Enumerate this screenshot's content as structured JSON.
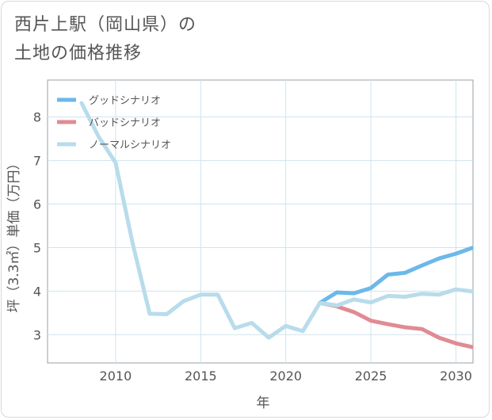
{
  "title_lines": [
    "西片上駅（岡山県）の",
    "土地の価格推移"
  ],
  "chart_data": {
    "type": "line",
    "xlabel": "年",
    "ylabel": "坪（3.3㎡）単価（万円）",
    "xlim": [
      2006,
      2031
    ],
    "ylim": [
      2.35,
      8.85
    ],
    "xticks": [
      2010,
      2015,
      2020,
      2025,
      2030
    ],
    "yticks": [
      3,
      4,
      5,
      6,
      7,
      8
    ],
    "grid": true,
    "legend_position": "top-left",
    "series": [
      {
        "name": "グッドシナリオ",
        "color": "#6cb8ea",
        "x": [
          2022,
          2023,
          2024,
          2025,
          2026,
          2027,
          2028,
          2029,
          2030,
          2031
        ],
        "y": [
          3.73,
          3.97,
          3.95,
          4.07,
          4.38,
          4.42,
          4.59,
          4.75,
          4.86,
          5.0
        ]
      },
      {
        "name": "バッドシナリオ",
        "color": "#e08b93",
        "x": [
          2022,
          2023,
          2024,
          2025,
          2026,
          2027,
          2028,
          2029,
          2030,
          2031
        ],
        "y": [
          3.73,
          3.65,
          3.52,
          3.32,
          3.24,
          3.17,
          3.13,
          2.93,
          2.8,
          2.71
        ]
      },
      {
        "name": "ノーマルシナリオ",
        "color": "#b8dceb",
        "x": [
          2008,
          2009,
          2010,
          2011,
          2012,
          2013,
          2014,
          2015,
          2016,
          2017,
          2018,
          2019,
          2020,
          2021,
          2022,
          2023,
          2024,
          2025,
          2026,
          2027,
          2028,
          2029,
          2030,
          2031
        ],
        "y": [
          8.32,
          7.55,
          6.95,
          5.1,
          3.48,
          3.47,
          3.77,
          3.92,
          3.92,
          3.15,
          3.27,
          2.93,
          3.2,
          3.08,
          3.73,
          3.67,
          3.81,
          3.74,
          3.89,
          3.87,
          3.94,
          3.92,
          4.04,
          3.99
        ]
      }
    ]
  }
}
